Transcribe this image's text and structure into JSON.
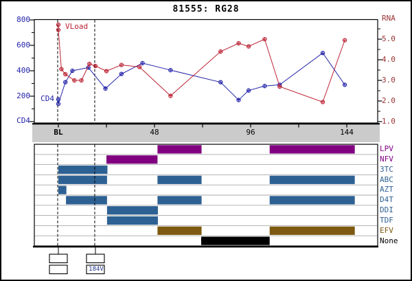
{
  "title": "81555: RG28",
  "colors": {
    "vload_red": "#bb2233",
    "cd4_blue": "#2222aa",
    "right_axis_text": "#993333",
    "left_axis_text": "#2222aa",
    "pi_purple": "#800080",
    "nrti_blue": "#2e6193",
    "efv_brown": "#7d5a10",
    "none_black": "#000000",
    "band_gray": "#cbcbcb",
    "row_separator": "#aaaaaa"
  },
  "top_chart": {
    "series_labels": {
      "vload": "VLoad",
      "cd4": "CD4"
    },
    "left_axis": {
      "tick_labels": [
        "800",
        "600",
        "400",
        "200"
      ],
      "zero_label": "CD4"
    },
    "right_axis": {
      "title": "RNA",
      "tick_labels": [
        "5.0",
        "4.0",
        "3.0",
        "2.0",
        "1.0"
      ]
    },
    "x_axis": {
      "tick_labels": [
        "BL",
        "48",
        "96",
        "144"
      ]
    }
  },
  "chart_data": [
    {
      "type": "line",
      "title": "81555: RG28",
      "x_unit": "weeks",
      "x_range": [
        -12,
        159
      ],
      "x_ticks": [
        {
          "week": 0,
          "label": "BL"
        },
        {
          "week": 48,
          "label": "48"
        },
        {
          "week": 96,
          "label": "96"
        },
        {
          "week": 144,
          "label": "144"
        }
      ],
      "x_minor_tick_interval": 24,
      "y_left": {
        "label": "CD4",
        "range": [
          0,
          800
        ],
        "major_ticks": [
          0,
          200,
          400,
          600,
          800
        ],
        "minor_ticks": [
          100,
          300,
          500,
          700
        ]
      },
      "y_right": {
        "label": "RNA",
        "range": [
          1,
          6
        ],
        "major_ticks": [
          1,
          2,
          3,
          4,
          5
        ],
        "minor_ticks": [
          1.5,
          2.5,
          3.5,
          4.5,
          5.5
        ]
      },
      "dashed_vlines_weeks": [
        0,
        18.5
      ],
      "series": [
        {
          "name": "CD4",
          "axis": "left",
          "color": "#2222aa",
          "points": [
            [
              0,
              175
            ],
            [
              0,
              140
            ],
            [
              3.5,
              310
            ],
            [
              7,
              400
            ],
            [
              15,
              425
            ],
            [
              23.5,
              260
            ],
            [
              31.5,
              375
            ],
            [
              42,
              460
            ],
            [
              56,
              405
            ],
            [
              81,
              310
            ],
            [
              90,
              170
            ],
            [
              95,
              245
            ],
            [
              103,
              280
            ],
            [
              110.5,
              290
            ],
            [
              132,
              540
            ],
            [
              143,
              290
            ]
          ]
        },
        {
          "name": "VLoad",
          "axis": "right",
          "color": "#bb2233",
          "points": [
            [
              0,
              5.7
            ],
            [
              0,
              5.45
            ],
            [
              1.5,
              3.55
            ],
            [
              3.5,
              3.3
            ],
            [
              8,
              3.0
            ],
            [
              11.5,
              3.0
            ],
            [
              15.5,
              3.8
            ],
            [
              18.5,
              3.7
            ],
            [
              24,
              3.45
            ],
            [
              31.5,
              3.75
            ],
            [
              40.5,
              3.65
            ],
            [
              56,
              2.25
            ],
            [
              81,
              4.4
            ],
            [
              90,
              4.8
            ],
            [
              95,
              4.65
            ],
            [
              103,
              5.0
            ],
            [
              110.5,
              2.7
            ],
            [
              132,
              1.95
            ],
            [
              143,
              4.95
            ]
          ]
        }
      ]
    },
    {
      "type": "gantt",
      "x_unit": "weeks",
      "rows": [
        {
          "label": "LPV",
          "color": "#800080",
          "bars": [
            [
              49.5,
              71.5
            ],
            [
              105.5,
              148
            ]
          ]
        },
        {
          "label": "NFV",
          "color": "#800080",
          "bars": [
            [
              24,
              49.5
            ]
          ]
        },
        {
          "label": "3TC",
          "color": "#2e6193",
          "bars": [
            [
              0,
              24.5
            ]
          ]
        },
        {
          "label": "ABC",
          "color": "#2e6193",
          "bars": [
            [
              0,
              24.3
            ],
            [
              49.5,
              71.5
            ],
            [
              105.5,
              148
            ]
          ]
        },
        {
          "label": "AZT",
          "color": "#2e6193",
          "bars": [
            [
              0,
              4
            ]
          ]
        },
        {
          "label": "D4T",
          "color": "#2e6193",
          "bars": [
            [
              3.8,
              24.3
            ],
            [
              49.5,
              71.5
            ],
            [
              105.5,
              148
            ]
          ]
        },
        {
          "label": "DDI",
          "color": "#2e6193",
          "bars": [
            [
              24.3,
              49.7
            ]
          ]
        },
        {
          "label": "TDF",
          "color": "#2e6193",
          "bars": [
            [
              24.3,
              49.7
            ]
          ]
        },
        {
          "label": "EFV",
          "color": "#7d5a10",
          "bars": [
            [
              49.5,
              71.5
            ],
            [
              105.5,
              148
            ]
          ]
        },
        {
          "label": "None",
          "color": "#000000",
          "bars": [
            [
              71.3,
              105.5
            ]
          ]
        }
      ]
    }
  ],
  "resistance_tests": [
    {
      "week": 0,
      "boxes": [
        "",
        ""
      ]
    },
    {
      "week": 18.5,
      "boxes": [
        "",
        "184V"
      ]
    }
  ]
}
